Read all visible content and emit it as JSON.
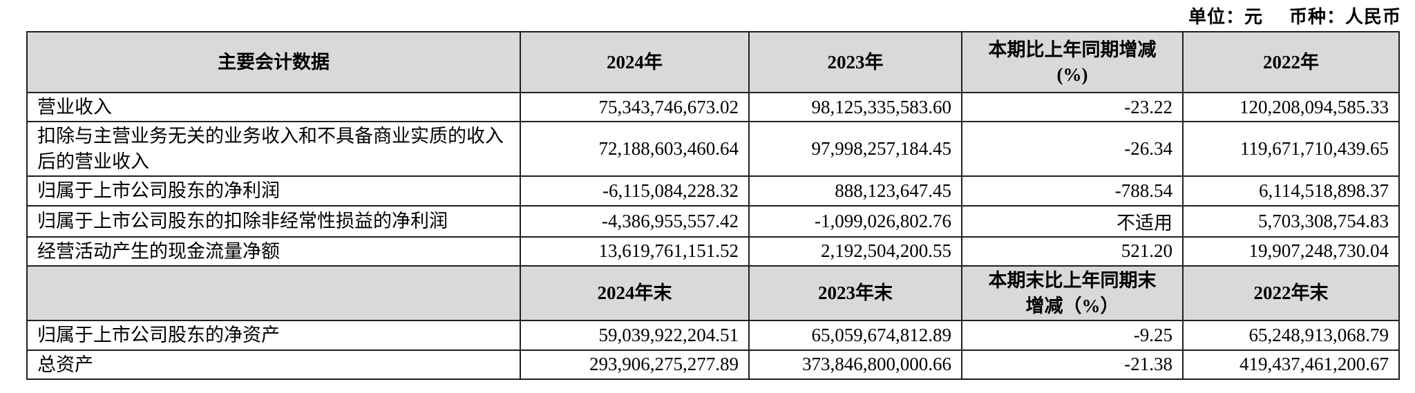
{
  "caption": {
    "unit": "单位：元",
    "currency": "币种：人民币"
  },
  "colors": {
    "header_bg": "#d9d9d9",
    "border": "#1f1f1f"
  },
  "table": {
    "header_annual": [
      "主要会计数据",
      "2024年",
      "2023年",
      "本期比上年同期增减\n(%)",
      "2022年"
    ],
    "rows_annual": [
      {
        "label": "营业收入",
        "values": [
          "75,343,746,673.02",
          "98,125,335,583.60",
          "-23.22",
          "120,208,094,585.33"
        ]
      },
      {
        "label": "扣除与主营业务无关的业务收入和不具备商业实质的收入后的营业收入",
        "values": [
          "72,188,603,460.64",
          "97,998,257,184.45",
          "-26.34",
          "119,671,710,439.65"
        ]
      },
      {
        "label": "归属于上市公司股东的净利润",
        "values": [
          "-6,115,084,228.32",
          "888,123,647.45",
          "-788.54",
          "6,114,518,898.37"
        ]
      },
      {
        "label": "归属于上市公司股东的扣除非经常性损益的净利润",
        "values": [
          "-4,386,955,557.42",
          "-1,099,026,802.76",
          "不适用",
          "5,703,308,754.83"
        ]
      },
      {
        "label": "经营活动产生的现金流量净额",
        "values": [
          "13,619,761,151.52",
          "2,192,504,200.55",
          "521.20",
          "19,907,248,730.04"
        ]
      }
    ],
    "header_eoy": [
      "",
      "2024年末",
      "2023年末",
      "本期末比上年同期末\n增减（%）",
      "2022年末"
    ],
    "rows_eoy": [
      {
        "label": "归属于上市公司股东的净资产",
        "values": [
          "59,039,922,204.51",
          "65,059,674,812.89",
          "-9.25",
          "65,248,913,068.79"
        ]
      },
      {
        "label": "总资产",
        "values": [
          "293,906,275,277.89",
          "373,846,800,000.66",
          "-21.38",
          "419,437,461,200.67"
        ]
      }
    ]
  }
}
